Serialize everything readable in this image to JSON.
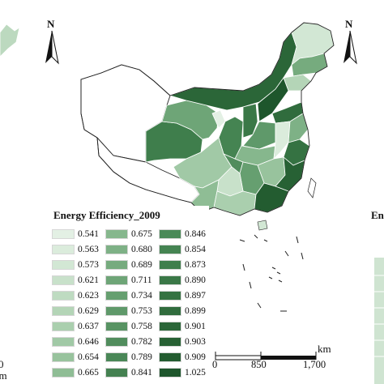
{
  "legend": {
    "title": "Energy Efficiency_2009",
    "items": [
      {
        "value": "0.541",
        "color": "#e3f0e4"
      },
      {
        "value": "0.563",
        "color": "#dbecdc"
      },
      {
        "value": "0.573",
        "color": "#d2e7d4"
      },
      {
        "value": "0.621",
        "color": "#c8e1ca"
      },
      {
        "value": "0.623",
        "color": "#bedbc1"
      },
      {
        "value": "0.629",
        "color": "#b4d5b7"
      },
      {
        "value": "0.637",
        "color": "#aacfae"
      },
      {
        "value": "0.646",
        "color": "#a1c9a6"
      },
      {
        "value": "0.654",
        "color": "#98c39d"
      },
      {
        "value": "0.665",
        "color": "#8fbd95"
      },
      {
        "value": "0.675",
        "color": "#86b78d"
      },
      {
        "value": "0.680",
        "color": "#7eb186"
      },
      {
        "value": "0.689",
        "color": "#76ab7e"
      },
      {
        "value": "0.711",
        "color": "#6ea577"
      },
      {
        "value": "0.734",
        "color": "#669f70"
      },
      {
        "value": "0.753",
        "color": "#5f996a"
      },
      {
        "value": "0.758",
        "color": "#589363"
      },
      {
        "value": "0.782",
        "color": "#518d5d"
      },
      {
        "value": "0.789",
        "color": "#4a8757"
      },
      {
        "value": "0.841",
        "color": "#448151"
      },
      {
        "value": "0.846",
        "color": "#4a8a58"
      },
      {
        "value": "0.854",
        "color": "#458452"
      },
      {
        "value": "0.873",
        "color": "#3f7e4c"
      },
      {
        "value": "0.890",
        "color": "#3a7847"
      },
      {
        "value": "0.897",
        "color": "#357242"
      },
      {
        "value": "0.899",
        "color": "#306c3d"
      },
      {
        "value": "0.901",
        "color": "#2b6638"
      },
      {
        "value": "0.903",
        "color": "#276134"
      },
      {
        "value": "0.909",
        "color": "#235c30"
      },
      {
        "value": "1.025",
        "color": "#1e562c"
      }
    ]
  },
  "scalebar": {
    "ticks": [
      "0",
      "850",
      "1,700"
    ],
    "unit": "km"
  },
  "north_arrow": {
    "label": "N"
  },
  "side_fragments": {
    "left_unit": "km",
    "left_zero": "0",
    "right_title": "En"
  },
  "colors": {
    "nodata": "#ffffff",
    "border": "#ffffff",
    "outline": "#222222"
  }
}
